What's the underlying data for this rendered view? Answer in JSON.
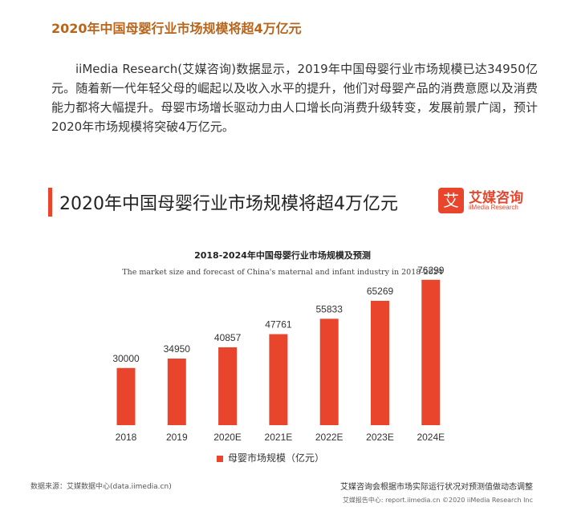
{
  "article": {
    "title": "2020年中国母婴行业市场规模将超4万亿元",
    "body": "iiMedia Research(艾媒咨询)数据显示，2019年中国母婴行业市场规模已达34950亿元。随着新一代年轻父母的崛起以及收入水平的提升，他们对母婴产品的消费意愿以及消费能力都将大幅提升。母婴市场增长驱动力由人口增长向消费升级转变，发展前景广阔，预计2020年市场规模将突破4万亿元。"
  },
  "card": {
    "title": "2020年中国母婴行业市场规模将超4万亿元",
    "logo_glyph": "艾",
    "logo_cn": "艾媒咨询",
    "logo_en": "iiMedia Research",
    "source": "数据来源：艾媒数据中心(data.iimedia.cn)",
    "note": "艾媒咨询会根据市场实际运行状况对预测值做动态调整",
    "footer": "艾媒报告中心: report.iimedia.cn ©2020  iiMedia Research Inc"
  },
  "chart_data": {
    "type": "bar",
    "title": "2018-2024年中国母婴行业市场规模及预测",
    "subtitle": "The market size and forecast of China's maternal and infant industry in 2018-2024",
    "categories": [
      "2018",
      "2019",
      "2020E",
      "2021E",
      "2022E",
      "2023E",
      "2024E"
    ],
    "series": [
      {
        "name": "母婴市场规模（亿元）",
        "values": [
          30000,
          34950,
          40857,
          47761,
          55833,
          65269,
          76299
        ]
      }
    ],
    "value_labels": [
      "30000",
      "34950",
      "40857",
      "47761",
      "55833",
      "65269",
      "76299"
    ],
    "ylim": [
      0,
      80000
    ],
    "grid": false,
    "legend": "bottom-center",
    "bar_color": "#e8452c"
  }
}
